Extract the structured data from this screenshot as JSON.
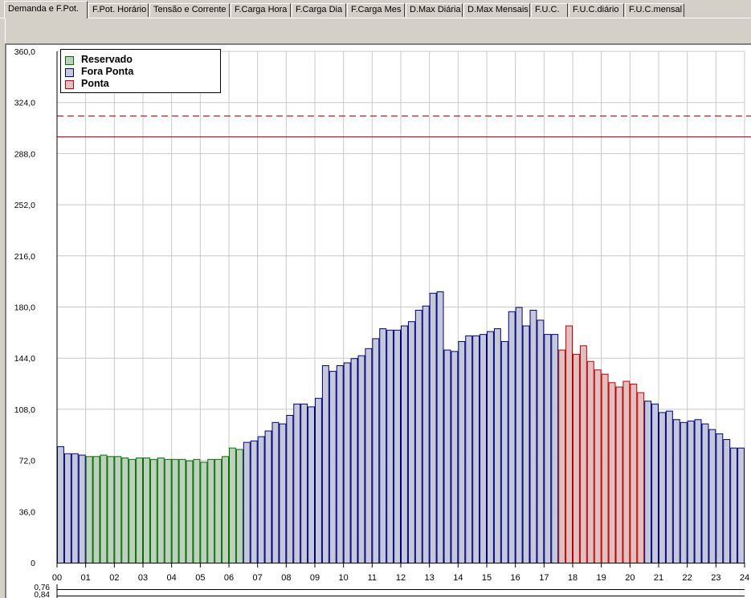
{
  "tabs": [
    {
      "label": "Demanda e F.Pot.",
      "active": true
    },
    {
      "label": "F.Pot. Horário"
    },
    {
      "label": "Tensão e Corrente"
    },
    {
      "label": "F.Carga Hora"
    },
    {
      "label": "F.Carga Dia"
    },
    {
      "label": "F.Carga Mes"
    },
    {
      "label": "D.Max Diária"
    },
    {
      "label": "D.Max Mensais"
    },
    {
      "label": "F.U.C."
    },
    {
      "label": "F.U.C.diário"
    },
    {
      "label": "F.U.C.mensal"
    }
  ],
  "legend": [
    {
      "label": "Reservado",
      "fill": "#bfd0bf",
      "stroke": "#007000"
    },
    {
      "label": "Fora Ponta",
      "fill": "#c4c8d8",
      "stroke": "#000080"
    },
    {
      "label": "Ponta",
      "fill": "#e0c0c0",
      "stroke": "#c00000"
    }
  ],
  "colors": {
    "grid": "#c8c8c8",
    "axis": "#000000",
    "limit_line": "#c00000"
  },
  "chart_data": {
    "type": "bar",
    "xlim": [
      0,
      24
    ],
    "ylim": [
      0,
      360
    ],
    "y_ticks": [
      "0",
      "36,0",
      "72,0",
      "108,0",
      "144,0",
      "180,0",
      "216,0",
      "252,0",
      "288,0",
      "324,0",
      "360,0"
    ],
    "x_ticks": [
      "00",
      "01",
      "02",
      "03",
      "04",
      "05",
      "06",
      "07",
      "08",
      "09",
      "10",
      "11",
      "12",
      "13",
      "14",
      "15",
      "16",
      "17",
      "18",
      "19",
      "20",
      "21",
      "22",
      "23",
      "24"
    ],
    "bar_interval_hours": 0.25,
    "series": [
      {
        "name": "Reservado",
        "start_index": 4,
        "values": [
          75,
          75,
          76,
          75,
          75,
          74,
          73,
          74,
          74,
          73,
          74,
          73,
          73,
          73,
          72,
          73,
          71,
          73,
          73,
          75,
          81,
          80
        ]
      },
      {
        "name": "Fora Ponta",
        "start_index": 0,
        "values": [
          82,
          77,
          77,
          76
        ]
      },
      {
        "name": "Fora Ponta",
        "start_index": 26,
        "values": [
          85,
          86,
          89,
          93,
          99,
          98,
          104,
          112,
          112,
          110,
          116,
          139,
          135,
          139,
          141,
          144,
          146,
          151,
          158,
          165,
          164,
          164,
          167,
          170,
          178,
          181,
          190,
          191,
          150,
          149,
          156,
          160,
          160,
          161,
          163,
          165,
          156,
          177,
          180,
          167,
          178,
          171,
          161,
          161
        ]
      },
      {
        "name": "Ponta",
        "start_index": 70,
        "values": [
          150,
          167,
          147,
          153,
          142,
          136,
          133,
          127,
          124,
          128,
          126,
          120
        ]
      },
      {
        "name": "Fora Ponta",
        "start_index": 82,
        "values": [
          114,
          112,
          106,
          107,
          101,
          99,
          100,
          101,
          98,
          94,
          91,
          87,
          81,
          81
        ]
      }
    ],
    "reference_lines": [
      {
        "value": 315,
        "style": "dashed"
      },
      {
        "value": 300,
        "style": "solid"
      }
    ],
    "secondary_axis_labels": [
      "0,76",
      "0,84"
    ]
  }
}
